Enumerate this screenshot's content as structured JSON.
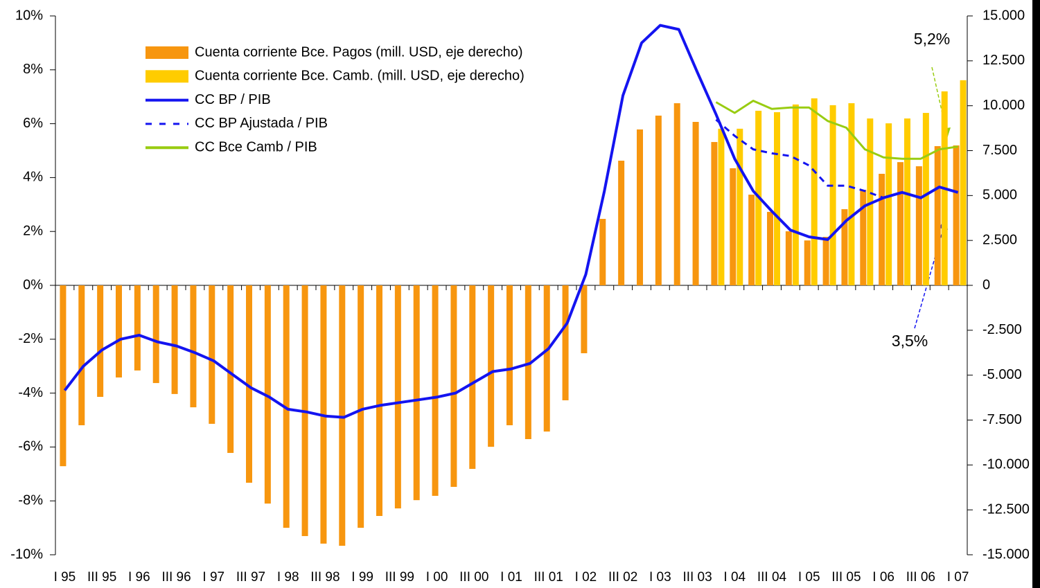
{
  "chart_data": {
    "type": "combo",
    "categories": [
      "I 95",
      null,
      "III 95",
      null,
      "I 96",
      null,
      "III 96",
      null,
      "I 97",
      null,
      "III 97",
      null,
      "I 98",
      null,
      "III 98",
      null,
      "I 99",
      null,
      "III 99",
      null,
      "I 00",
      null,
      "III 00",
      null,
      "I 01",
      null,
      "III 01",
      null,
      "I 02",
      null,
      "III 02",
      null,
      "I 03",
      null,
      "III 03",
      null,
      "I 04",
      null,
      "III 04",
      null,
      "I 05",
      null,
      "III 05",
      null,
      "I 06",
      null,
      "III 06",
      null,
      "I 07"
    ],
    "ylim": [
      -10,
      10
    ],
    "yticks": [
      {
        "value": 10,
        "label": "10%"
      },
      {
        "value": 8,
        "label": "8%"
      },
      {
        "value": 6,
        "label": "6%"
      },
      {
        "value": 4,
        "label": "4%"
      },
      {
        "value": 2,
        "label": "2%"
      },
      {
        "value": 0,
        "label": "0%"
      },
      {
        "value": -2,
        "label": "-2%"
      },
      {
        "value": -4,
        "label": "-4%"
      },
      {
        "value": -6,
        "label": "-6%"
      },
      {
        "value": -8,
        "label": "-8%"
      },
      {
        "value": -10,
        "label": "-10%"
      }
    ],
    "y2lim": [
      -15000,
      15000
    ],
    "y2ticks": [
      {
        "value": 15000,
        "label": "15.000"
      },
      {
        "value": 12500,
        "label": "12.500"
      },
      {
        "value": 10000,
        "label": "10.000"
      },
      {
        "value": 7500,
        "label": "7.500"
      },
      {
        "value": 5000,
        "label": "5.000"
      },
      {
        "value": 2500,
        "label": "2.500"
      },
      0,
      {
        "value": -2500,
        "label": "-2.500"
      },
      {
        "value": -5000,
        "label": "-5.000"
      },
      {
        "value": -7500,
        "label": "-7.500"
      },
      {
        "value": -10000,
        "label": "-10.000"
      },
      {
        "value": -12500,
        "label": "-12.500"
      },
      {
        "value": -15000,
        "label": "-15.000"
      }
    ],
    "series": [
      {
        "name": "Cuenta corriente Bce. Pagos (mill. USD, eje derecho)",
        "type": "bar",
        "axis": "y2",
        "color": "#f7960f",
        "values": [
          -10070,
          -7790,
          -6210,
          -5130,
          -4740,
          -5440,
          -6050,
          -6790,
          -7710,
          -9330,
          -10990,
          -12150,
          -13500,
          -13960,
          -14380,
          -14500,
          -13500,
          -12840,
          -12420,
          -11960,
          -11720,
          -11220,
          -10220,
          -8990,
          -7790,
          -8560,
          -8140,
          -6400,
          -3780,
          3700,
          6940,
          8680,
          9450,
          10140,
          9100,
          7980,
          6520,
          5050,
          4090,
          3010,
          2500,
          2700,
          4240,
          5320,
          6210,
          6860,
          6630,
          7750,
          7790
        ]
      },
      {
        "name": "Cuenta corriente Bce. Camb. (mill. USD, eje derecho)",
        "type": "bar",
        "axis": "y2",
        "color": "#ffcc00",
        "values": [
          null,
          null,
          null,
          null,
          null,
          null,
          null,
          null,
          null,
          null,
          null,
          null,
          null,
          null,
          null,
          null,
          null,
          null,
          null,
          null,
          null,
          null,
          null,
          null,
          null,
          null,
          null,
          null,
          null,
          null,
          null,
          null,
          null,
          null,
          null,
          8720,
          8720,
          9720,
          9640,
          10070,
          10410,
          10030,
          10140,
          9290,
          9020,
          9290,
          9600,
          10800,
          11420
        ]
      },
      {
        "name": "CC BP / PIB",
        "type": "line",
        "color": "#1414f0",
        "values": [
          -3.9,
          -3.0,
          -2.4,
          -2.0,
          -1.85,
          -2.1,
          -2.25,
          -2.5,
          -2.8,
          -3.3,
          -3.8,
          -4.15,
          -4.6,
          -4.7,
          -4.85,
          -4.9,
          -4.6,
          -4.45,
          -4.35,
          -4.25,
          -4.15,
          -4.0,
          -3.6,
          -3.2,
          -3.1,
          -2.9,
          -2.35,
          -1.4,
          0.4,
          3.5,
          7.05,
          9.0,
          9.65,
          9.5,
          7.9,
          6.35,
          4.7,
          3.5,
          2.75,
          2.05,
          1.8,
          1.7,
          2.4,
          2.95,
          3.25,
          3.45,
          3.25,
          3.65,
          3.45
        ]
      },
      {
        "name": "CC BP Ajustada / PIB",
        "type": "line",
        "dash": true,
        "color": "#1414f0",
        "values": [
          null,
          null,
          null,
          null,
          null,
          null,
          null,
          null,
          null,
          null,
          null,
          null,
          null,
          null,
          null,
          null,
          null,
          null,
          null,
          null,
          null,
          null,
          null,
          null,
          null,
          null,
          null,
          null,
          null,
          null,
          null,
          null,
          null,
          null,
          null,
          6.15,
          5.55,
          5.05,
          4.9,
          4.8,
          4.45,
          3.7,
          3.7,
          3.5,
          3.25,
          null,
          null,
          null,
          null
        ]
      },
      {
        "name": "CC Bce Camb / PIB",
        "type": "line",
        "color": "#99cc11",
        "values": [
          null,
          null,
          null,
          null,
          null,
          null,
          null,
          null,
          null,
          null,
          null,
          null,
          null,
          null,
          null,
          null,
          null,
          null,
          null,
          null,
          null,
          null,
          null,
          null,
          null,
          null,
          null,
          null,
          null,
          null,
          null,
          null,
          null,
          null,
          null,
          6.8,
          6.4,
          6.85,
          6.55,
          6.6,
          6.6,
          6.1,
          5.85,
          5.05,
          4.75,
          4.7,
          4.7,
          5.05,
          5.15
        ]
      }
    ],
    "annotations": [
      "5,2%",
      "3,5%"
    ]
  }
}
